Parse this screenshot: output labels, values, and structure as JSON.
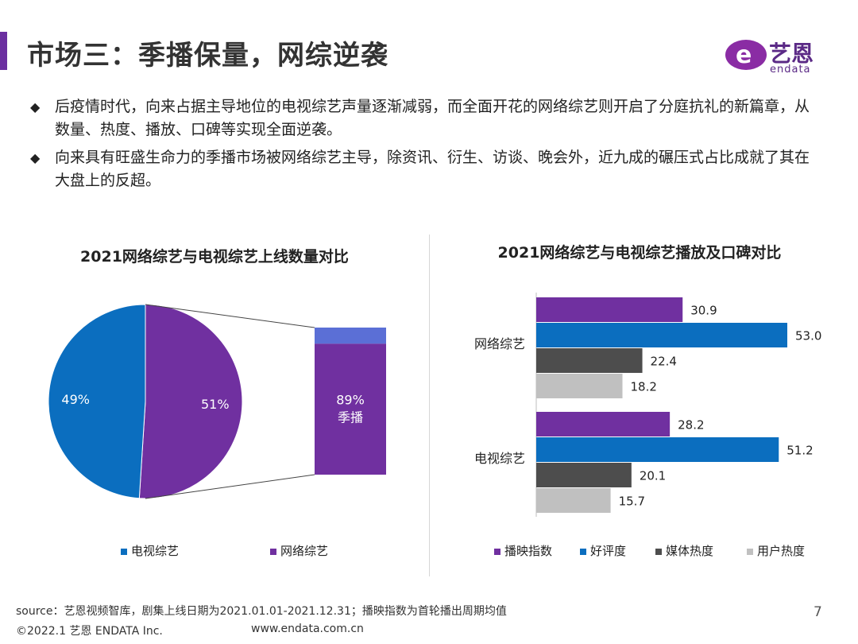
{
  "header": {
    "title": "市场三：季播保量，网综逆袭",
    "logo_mark": "e",
    "logo_cn": "艺恩",
    "logo_en": "endata"
  },
  "bullets": [
    "后疫情时代，向来占据主导地位的电视综艺声量逐渐减弱，而全面开花的网络综艺则开启了分庭抗礼的新篇章，从数量、热度、播放、口碑等实现全面逆袭。",
    "向来具有旺盛生命力的季播市场被网络综艺主导，除资讯、衍生、访谈、晚会外，近九成的碾压式占比成就了其在大盘上的反超。"
  ],
  "bullet_symbol": "◆",
  "chart_data": [
    {
      "type": "pie",
      "title": "2021网络综艺与电视综艺上线数量对比",
      "slices": [
        {
          "name": "电视综艺",
          "value": 49,
          "label": "49%",
          "color": "#0b6ebf"
        },
        {
          "name": "网络综艺",
          "value": 51,
          "label": "51%",
          "color": "#7030a0"
        }
      ],
      "breakout": {
        "of": "网络综艺",
        "segments": [
          {
            "value": 89,
            "label": "89%",
            "sublabel": "季播",
            "color": "#7030a0"
          },
          {
            "value": 11,
            "label": "",
            "sublabel": "",
            "color": "#5b6fd6"
          }
        ]
      },
      "legend": [
        "电视综艺",
        "网络综艺"
      ],
      "legend_position": "bottom"
    },
    {
      "type": "bar",
      "orientation": "horizontal",
      "title": "2021网络综艺与电视综艺播放及口碑对比",
      "categories": [
        "网络综艺",
        "电视综艺"
      ],
      "series": [
        {
          "name": "播映指数",
          "color": "#7030a0",
          "values": [
            30.9,
            28.2
          ]
        },
        {
          "name": "好评度",
          "color": "#0b6ebf",
          "values": [
            53.0,
            51.2
          ]
        },
        {
          "name": "媒体热度",
          "color": "#4d4d4d",
          "values": [
            22.4,
            20.1
          ]
        },
        {
          "name": "用户热度",
          "color": "#c0c0c0",
          "values": [
            18.2,
            15.7
          ]
        }
      ],
      "value_labels": [
        [
          "30.9",
          "53.0",
          "22.4",
          "18.2"
        ],
        [
          "28.2",
          "51.2",
          "20.1",
          "15.7"
        ]
      ],
      "xlim": [
        0,
        60
      ],
      "legend_position": "bottom"
    }
  ],
  "footer": {
    "source": "source：艺恩视频智库，剧集上线日期为2021.01.01-2021.12.31；播映指数为首轮播出周期均值",
    "copyright": "©2022.1 艺恩 ENDATA Inc.",
    "url": "www.endata.com.cn",
    "page": "7"
  }
}
